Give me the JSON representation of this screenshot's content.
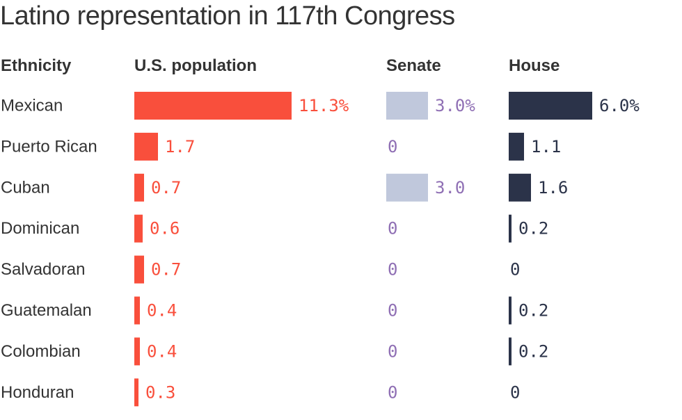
{
  "title": "Latino representation in 117th Congress",
  "headers": {
    "ethnicity": "Ethnicity",
    "population": "U.S. population",
    "senate": "Senate",
    "house": "House"
  },
  "colors": {
    "population": "#f94f3c",
    "senate_bar": "#c0c8dc",
    "senate_text": "#8f6fb4",
    "house": "#2b3349",
    "text": "#333333"
  },
  "chart_data": {
    "type": "bar",
    "title": "Latino representation in 117th Congress",
    "categories": [
      "Mexican",
      "Puerto Rican",
      "Cuban",
      "Dominican",
      "Salvadoran",
      "Guatemalan",
      "Colombian",
      "Honduran"
    ],
    "series": [
      {
        "name": "U.S. population",
        "values": [
          11.3,
          1.7,
          0.7,
          0.6,
          0.7,
          0.4,
          0.4,
          0.3
        ],
        "labels": [
          "11.3%",
          "1.7",
          "0.7",
          "0.6",
          "0.7",
          "0.4",
          "0.4",
          "0.3"
        ]
      },
      {
        "name": "Senate",
        "values": [
          3.0,
          0,
          3.0,
          0,
          0,
          0,
          0,
          0
        ],
        "labels": [
          "3.0%",
          "0",
          "3.0",
          "0",
          "0",
          "0",
          "0",
          "0"
        ]
      },
      {
        "name": "House",
        "values": [
          6.0,
          1.1,
          1.6,
          0.2,
          0,
          0.2,
          0.2,
          0
        ],
        "labels": [
          "6.0%",
          "1.1",
          "1.6",
          "0.2",
          "0",
          "0.2",
          "0.2",
          "0"
        ]
      }
    ]
  }
}
